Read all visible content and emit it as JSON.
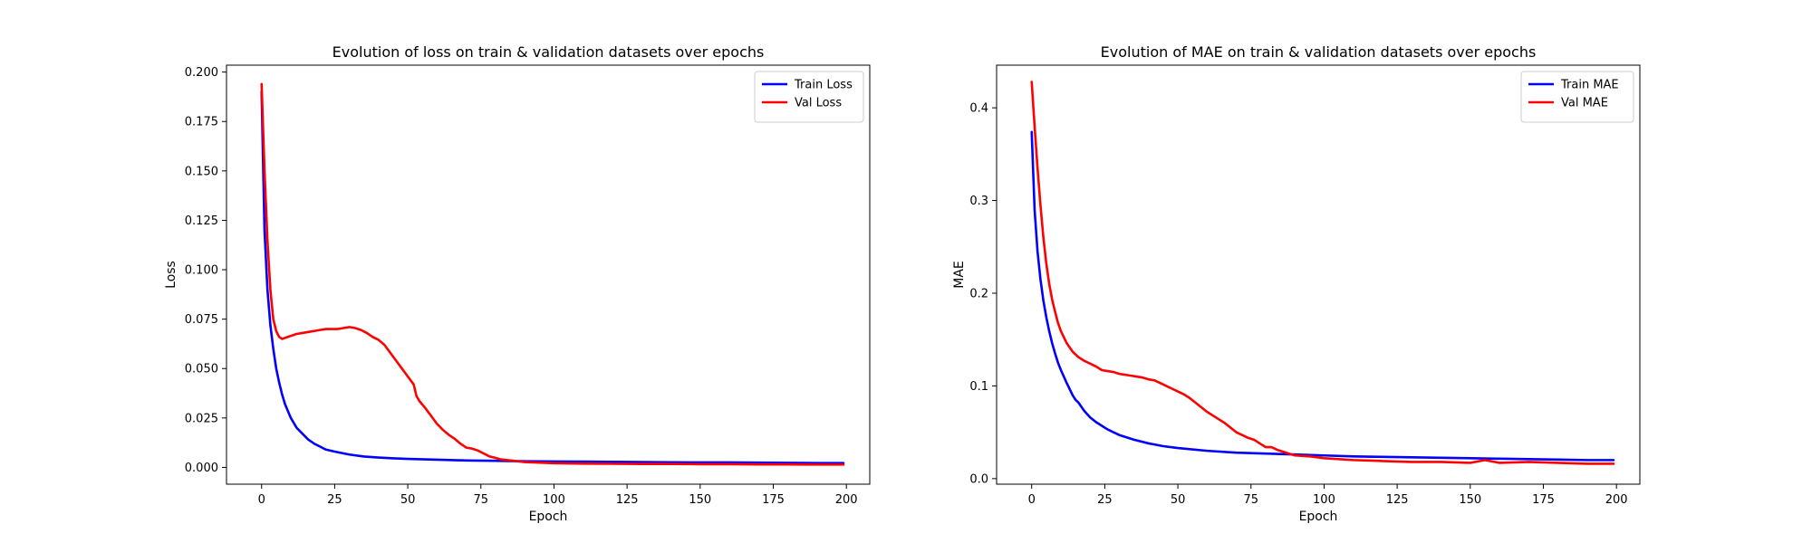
{
  "chart_data": [
    {
      "type": "line",
      "title": "Evolution of loss on train & validation datasets over epochs",
      "xlabel": "Epoch",
      "ylabel": "Loss",
      "xlim": [
        -12,
        208
      ],
      "ylim": [
        -0.0085,
        0.2035
      ],
      "xticks": [
        0,
        25,
        50,
        75,
        100,
        125,
        150,
        175,
        200
      ],
      "yticks": [
        0.0,
        0.025,
        0.05,
        0.075,
        0.1,
        0.125,
        0.15,
        0.175,
        0.2
      ],
      "ytick_labels": [
        "0.000",
        "0.025",
        "0.050",
        "0.075",
        "0.100",
        "0.125",
        "0.150",
        "0.175",
        "0.200"
      ],
      "grid": false,
      "legend": "top-right",
      "series": [
        {
          "name": "Train Loss",
          "color": "#0000ff",
          "x": [
            0,
            1,
            2,
            3,
            4,
            5,
            6,
            7,
            8,
            10,
            12,
            14,
            16,
            18,
            20,
            22,
            25,
            30,
            35,
            40,
            45,
            50,
            60,
            70,
            80,
            90,
            100,
            110,
            120,
            130,
            140,
            150,
            160,
            170,
            180,
            190,
            199
          ],
          "y": [
            0.19,
            0.12,
            0.09,
            0.072,
            0.06,
            0.05,
            0.043,
            0.037,
            0.032,
            0.025,
            0.02,
            0.017,
            0.014,
            0.012,
            0.0105,
            0.009,
            0.008,
            0.0065,
            0.0055,
            0.005,
            0.0046,
            0.0043,
            0.0039,
            0.0035,
            0.0033,
            0.0031,
            0.003,
            0.0029,
            0.0028,
            0.0027,
            0.0026,
            0.0025,
            0.0025,
            0.0024,
            0.0023,
            0.0022,
            0.0022
          ]
        },
        {
          "name": "Val Loss",
          "color": "#ff0000",
          "x": [
            0,
            1,
            2,
            3,
            4,
            5,
            6,
            7,
            8,
            9,
            10,
            12,
            14,
            16,
            18,
            20,
            22,
            24,
            26,
            28,
            30,
            32,
            34,
            36,
            38,
            40,
            42,
            44,
            46,
            48,
            50,
            52,
            53,
            54,
            56,
            58,
            60,
            62,
            64,
            66,
            68,
            70,
            72,
            74,
            76,
            78,
            80,
            82,
            84,
            86,
            88,
            90,
            95,
            100,
            110,
            120,
            130,
            140,
            150,
            160,
            170,
            180,
            190,
            199
          ],
          "y": [
            0.194,
            0.15,
            0.115,
            0.09,
            0.075,
            0.069,
            0.066,
            0.065,
            0.0655,
            0.066,
            0.0665,
            0.0675,
            0.068,
            0.0685,
            0.069,
            0.0695,
            0.07,
            0.07,
            0.07,
            0.0705,
            0.071,
            0.0705,
            0.0695,
            0.068,
            0.066,
            0.0645,
            0.062,
            0.058,
            0.054,
            0.05,
            0.046,
            0.042,
            0.036,
            0.0335,
            0.03,
            0.026,
            0.022,
            0.019,
            0.0165,
            0.0145,
            0.012,
            0.01,
            0.0095,
            0.0085,
            0.007,
            0.0055,
            0.0048,
            0.004,
            0.0037,
            0.0034,
            0.003,
            0.0027,
            0.0024,
            0.0021,
            0.0019,
            0.0018,
            0.0017,
            0.0017,
            0.0016,
            0.0016,
            0.0015,
            0.0015,
            0.0014,
            0.0014
          ]
        }
      ]
    },
    {
      "type": "line",
      "title": "Evolution of MAE on train & validation datasets over epochs",
      "xlabel": "Epoch",
      "ylabel": "MAE",
      "xlim": [
        -12,
        208
      ],
      "ylim": [
        -0.006,
        0.446
      ],
      "xticks": [
        0,
        25,
        50,
        75,
        100,
        125,
        150,
        175,
        200
      ],
      "yticks": [
        0.0,
        0.1,
        0.2,
        0.3,
        0.4
      ],
      "ytick_labels": [
        "0.0",
        "0.1",
        "0.2",
        "0.3",
        "0.4"
      ],
      "grid": false,
      "legend": "top-right",
      "series": [
        {
          "name": "Train MAE",
          "color": "#0000ff",
          "x": [
            0,
            1,
            2,
            3,
            4,
            5,
            6,
            7,
            8,
            9,
            10,
            12,
            14,
            15,
            16,
            18,
            20,
            22,
            24,
            26,
            28,
            30,
            35,
            40,
            45,
            50,
            60,
            70,
            80,
            90,
            100,
            110,
            120,
            130,
            140,
            150,
            160,
            170,
            180,
            190,
            199
          ],
          "y": [
            0.374,
            0.29,
            0.245,
            0.215,
            0.192,
            0.174,
            0.159,
            0.146,
            0.135,
            0.125,
            0.117,
            0.103,
            0.09,
            0.085,
            0.082,
            0.073,
            0.066,
            0.061,
            0.057,
            0.053,
            0.05,
            0.047,
            0.042,
            0.038,
            0.035,
            0.033,
            0.03,
            0.028,
            0.027,
            0.026,
            0.025,
            0.024,
            0.0235,
            0.023,
            0.0225,
            0.022,
            0.0215,
            0.021,
            0.0205,
            0.02,
            0.02
          ]
        },
        {
          "name": "Val MAE",
          "color": "#ff0000",
          "x": [
            0,
            1,
            2,
            3,
            4,
            5,
            6,
            7,
            8,
            9,
            10,
            12,
            14,
            16,
            18,
            20,
            22,
            24,
            26,
            28,
            30,
            32,
            34,
            36,
            38,
            40,
            42,
            44,
            46,
            48,
            50,
            52,
            54,
            56,
            58,
            60,
            62,
            64,
            66,
            68,
            70,
            72,
            74,
            76,
            78,
            80,
            82,
            84,
            86,
            88,
            90,
            95,
            100,
            105,
            110,
            120,
            130,
            140,
            150,
            155,
            160,
            170,
            180,
            190,
            199
          ],
          "y": [
            0.428,
            0.38,
            0.335,
            0.295,
            0.26,
            0.232,
            0.21,
            0.193,
            0.18,
            0.168,
            0.159,
            0.146,
            0.137,
            0.131,
            0.127,
            0.124,
            0.121,
            0.117,
            0.116,
            0.115,
            0.113,
            0.112,
            0.111,
            0.11,
            0.109,
            0.107,
            0.106,
            0.103,
            0.1,
            0.097,
            0.094,
            0.091,
            0.087,
            0.082,
            0.077,
            0.072,
            0.068,
            0.064,
            0.06,
            0.055,
            0.05,
            0.047,
            0.044,
            0.042,
            0.038,
            0.034,
            0.034,
            0.031,
            0.029,
            0.027,
            0.025,
            0.024,
            0.022,
            0.021,
            0.02,
            0.019,
            0.018,
            0.018,
            0.017,
            0.02,
            0.017,
            0.018,
            0.017,
            0.016,
            0.016
          ]
        }
      ]
    }
  ]
}
